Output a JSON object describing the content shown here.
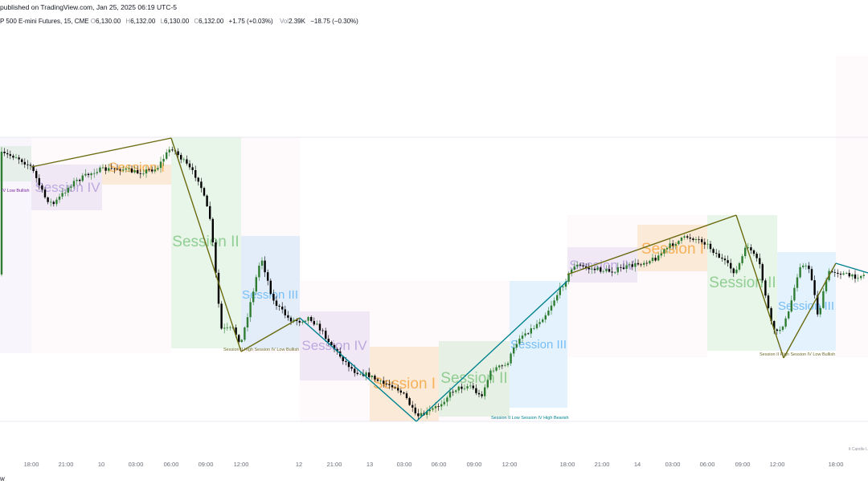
{
  "header": {
    "published": "published on TradingView.com, Jan 25, 2025 06:19 UTC-5",
    "symbol": "P 500 E-mini Futures, 15, CME",
    "o_key": "O",
    "o_val": "6,130.00",
    "h_key": "H",
    "h_val": "6,132.00",
    "l_key": "L",
    "l_val": "6,130.00",
    "c_key": "C",
    "c_val": "6,132.00",
    "change": "+1.75 (+0.03%)",
    "vol_key": "Vol",
    "vol_val": "2.39K",
    "change2": "−18.75 (−0.30%)"
  },
  "footer": {
    "left": "w",
    "watermark": "lt Candle L"
  },
  "chart_data": {
    "type": "candlestick",
    "x_ticks": [
      "18:00",
      "21:00",
      "10",
      "03:00",
      "06:00",
      "09:00",
      "12:00",
      "12",
      "21:00",
      "13",
      "03:00",
      "06:00",
      "09:00",
      "12:00",
      "18:00",
      "21:00",
      "14",
      "03:00",
      "06:00",
      "09:00",
      "12:00",
      "18:00"
    ],
    "sessions": [
      {
        "label": "Session IV",
        "kind": "IV",
        "color": "#b39ddb"
      },
      {
        "label": "Session I",
        "kind": "I",
        "color": "#f5a742"
      },
      {
        "label": "Session II",
        "kind": "II",
        "color": "#81c784"
      },
      {
        "label": "Session III",
        "kind": "III",
        "color": "#64b5f6"
      },
      {
        "label": "Session IV",
        "kind": "IV",
        "color": "#b39ddb"
      },
      {
        "label": "Session I",
        "kind": "I",
        "color": "#f5a742"
      },
      {
        "label": "Session II",
        "kind": "II",
        "color": "#81c784"
      },
      {
        "label": "Session III",
        "kind": "III",
        "color": "#64b5f6"
      },
      {
        "label": "Session IV",
        "kind": "IV",
        "color": "#b39ddb"
      },
      {
        "label": "Session I",
        "kind": "I",
        "color": "#f5a742"
      },
      {
        "label": "Session II",
        "kind": "II",
        "color": "#81c784"
      },
      {
        "label": "Session III",
        "kind": "III",
        "color": "#64b5f6"
      }
    ],
    "annotations": [
      {
        "text": "IV Low Bullish",
        "color": "#7b1fa2"
      },
      {
        "text": "Session II High Session IV Low Bullish",
        "color": "#6a6d2a"
      },
      {
        "text": "Session II Low Session IV High Bearish",
        "color": "#00838f"
      },
      {
        "text": "Session II High Session IV Low Bullish",
        "color": "#6a6d2a"
      }
    ],
    "colors": {
      "up": "#2e7d32",
      "down": "#000000",
      "bull_line": "#6b6b10",
      "bear_line": "#00838f"
    }
  }
}
